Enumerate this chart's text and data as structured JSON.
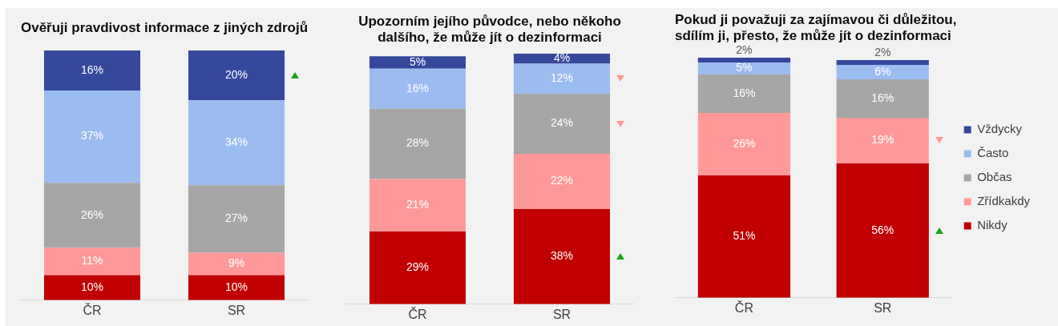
{
  "chart_data": [
    {
      "type": "bar",
      "title": "Ověřuji pravdivost informace z jiných zdrojů",
      "categories": [
        "ČR",
        "SR"
      ],
      "stacked": true,
      "tick_labels": "x",
      "series": [
        {
          "color": "#c00000",
          "values": [
            10,
            10
          ],
          "value_labels": [
            "10%",
            "10%"
          ]
        },
        {
          "color": "#ff9999",
          "values": [
            11,
            9
          ],
          "value_labels": [
            "11%",
            "9%"
          ]
        },
        {
          "color": "#a6a6a6",
          "values": [
            26,
            27
          ],
          "value_labels": [
            "26%",
            "27%"
          ]
        },
        {
          "color": "#9bbcef",
          "values": [
            37,
            34
          ],
          "value_labels": [
            "37%",
            "34%"
          ]
        },
        {
          "color": "#35489c",
          "values": [
            16,
            20
          ],
          "value_labels": [
            "16%",
            "20%"
          ]
        }
      ]
    },
    {
      "type": "bar",
      "title": "Upozorním jejího původce, nebo někoho dalšího, že může jít o dezinformaci",
      "categories": [
        "ČR",
        "SR"
      ],
      "stacked": true,
      "tick_labels": "x",
      "series": [
        {
          "color": "#c00000",
          "values": [
            29,
            38
          ],
          "value_labels": [
            "29%",
            "38%"
          ]
        },
        {
          "color": "#ff9999",
          "values": [
            21,
            22
          ],
          "value_labels": [
            "21%",
            "22%"
          ]
        },
        {
          "color": "#a6a6a6",
          "values": [
            28,
            24
          ],
          "value_labels": [
            "28%",
            "24%"
          ]
        },
        {
          "color": "#9bbcef",
          "values": [
            16,
            12
          ],
          "value_labels": [
            "16%",
            "12%"
          ]
        },
        {
          "color": "#35489c",
          "values": [
            5,
            4
          ],
          "value_labels": [
            "5%",
            "4%"
          ]
        }
      ]
    },
    {
      "type": "bar",
      "title": "Pokud ji považuji za zajímavou či důležitou, sdílím ji, přesto, že může jít o dezinformaci",
      "categories": [
        "ČR",
        "SR"
      ],
      "stacked": true,
      "tick_labels": "x",
      "legend": "right",
      "series": [
        {
          "name": "Nikdy",
          "color": "#c00000",
          "values": [
            51,
            56
          ],
          "value_labels": [
            "51%",
            "56%"
          ]
        },
        {
          "name": "Zřídkakdy",
          "color": "#ff9999",
          "values": [
            26,
            19
          ],
          "value_labels": [
            "26%",
            "19%"
          ]
        },
        {
          "name": "Občas",
          "color": "#a6a6a6",
          "values": [
            16,
            16
          ],
          "value_labels": [
            "16%",
            "16%"
          ]
        },
        {
          "name": "Často",
          "color": "#9bbcef",
          "values": [
            5,
            6
          ],
          "value_labels": [
            "5%",
            "6%"
          ]
        },
        {
          "name": "Vždycky",
          "color": "#35489c",
          "values": [
            2,
            2
          ],
          "value_labels": [
            "2%",
            "2%"
          ]
        }
      ]
    }
  ]
}
